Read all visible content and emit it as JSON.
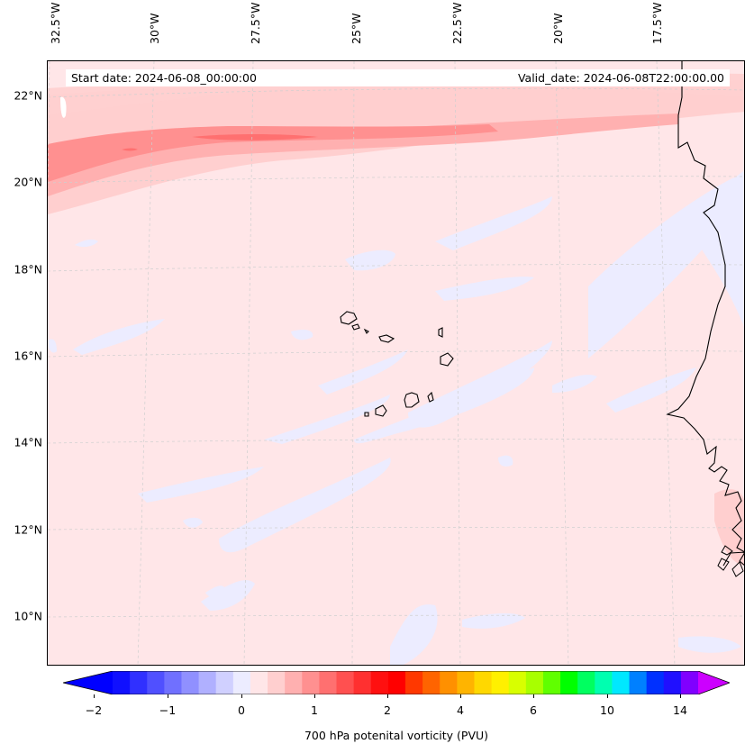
{
  "lon_labels": [
    "32.5°W",
    "30°W",
    "27.5°W",
    "25°W",
    "22.5°W",
    "20°W",
    "17.5°W"
  ],
  "lat_labels": [
    "22°N",
    "20°N",
    "18°N",
    "16°N",
    "14°N",
    "12°N",
    "10°N"
  ],
  "info": {
    "start": "Start date: 2024-06-08_00:00:00",
    "valid": "Valid_date: 2024-06-08T22:00:00.00"
  },
  "colorbar": {
    "label": "700 hPa potenital vorticity (PVU)",
    "tick_labels": [
      "−2",
      "−1",
      "0",
      "1",
      "2",
      "4",
      "6",
      "10",
      "14"
    ],
    "colors": [
      "#1010ff",
      "#3030ff",
      "#5050ff",
      "#7070ff",
      "#9090ff",
      "#b0b0ff",
      "#d0d0ff",
      "#ececff",
      "#ffe6e8",
      "#ffcfcf",
      "#ffb0b0",
      "#ff9090",
      "#ff7070",
      "#ff5050",
      "#ff3030",
      "#ff1010",
      "#ff0000",
      "#ff3800",
      "#ff6400",
      "#ff9000",
      "#ffb400",
      "#ffd800",
      "#fff000",
      "#d8ff00",
      "#a8ff00",
      "#60ff00",
      "#00ff00",
      "#00ff60",
      "#00ffb0",
      "#00e8ff",
      "#0080ff",
      "#0030ff",
      "#2010ff",
      "#8000ff"
    ],
    "extend_low": "#0000ff",
    "extend_high": "#cc00ff"
  }
}
